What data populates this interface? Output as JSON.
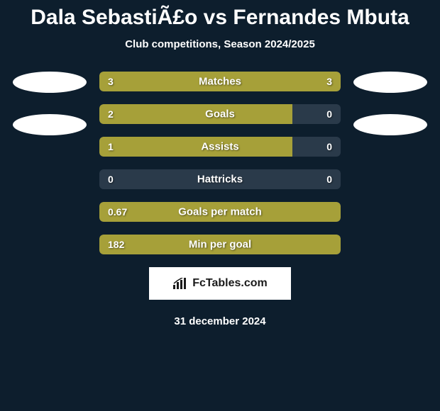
{
  "header": {
    "title": "Dala SebastiÃ£o vs Fernandes Mbuta",
    "subtitle": "Club competitions, Season 2024/2025"
  },
  "colors": {
    "background": "#0d1e2d",
    "bar_bg": "#2a3a4a",
    "bar_fill": "#a6a039",
    "text": "#ffffff",
    "ellipse": "#ffffff",
    "logo_bg": "#ffffff",
    "logo_text": "#1a1a1a"
  },
  "stats": [
    {
      "label": "Matches",
      "left_value": "3",
      "right_value": "3",
      "left_fill_pct": 50,
      "right_fill_pct": 50
    },
    {
      "label": "Goals",
      "left_value": "2",
      "right_value": "0",
      "left_fill_pct": 80,
      "right_fill_pct": 0
    },
    {
      "label": "Assists",
      "left_value": "1",
      "right_value": "0",
      "left_fill_pct": 80,
      "right_fill_pct": 0
    },
    {
      "label": "Hattricks",
      "left_value": "0",
      "right_value": "0",
      "left_fill_pct": 0,
      "right_fill_pct": 0
    },
    {
      "label": "Goals per match",
      "left_value": "0.67",
      "right_value": "",
      "left_fill_pct": 100,
      "right_fill_pct": 0
    },
    {
      "label": "Min per goal",
      "left_value": "182",
      "right_value": "",
      "left_fill_pct": 100,
      "right_fill_pct": 0
    }
  ],
  "logo": {
    "text": "FcTables.com"
  },
  "footer": {
    "date": "31 december 2024"
  }
}
